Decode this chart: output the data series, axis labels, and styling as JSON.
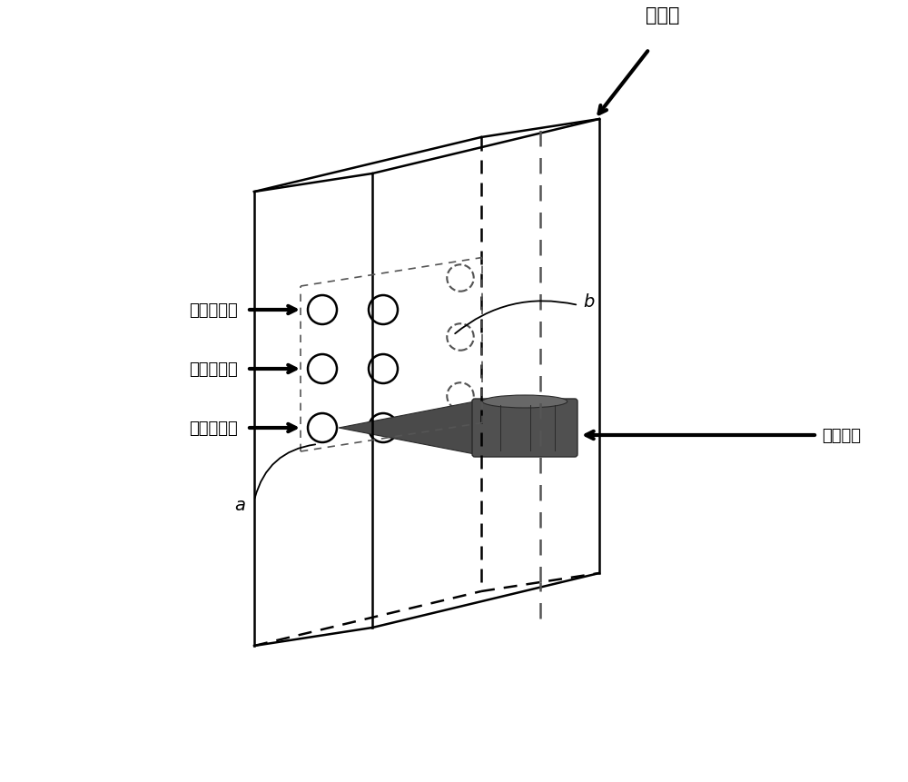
{
  "bg_color": "#ffffff",
  "black": "#000000",
  "gray": "#555555",
  "dark_gray": "#404040",
  "mid_gray": "#606060",
  "label_waibiaomian": "外表面",
  "label_jujilaser": "聚焦激光",
  "label_a": "a",
  "label_b": "b",
  "label_di1": "第一微结构",
  "label_di2": "第二微结构",
  "label_di3": "第三微结构",
  "lw_main": 1.8,
  "lw_thick": 3.0,
  "circle_r": 0.16
}
